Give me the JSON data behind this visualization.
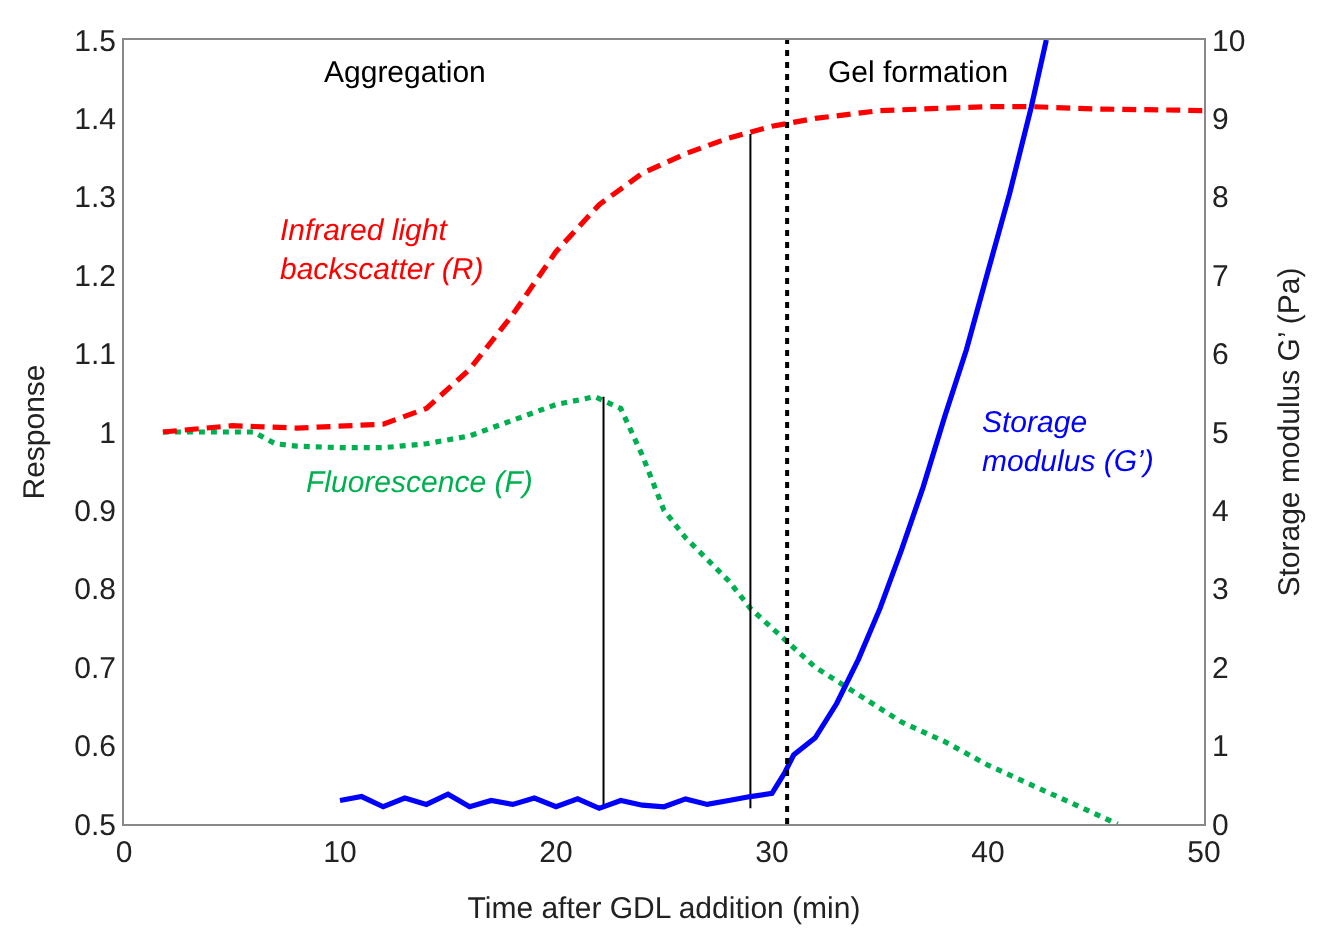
{
  "chart_data": {
    "type": "line",
    "xlabel": "Time after GDL addition (min)",
    "ylabel": "Response",
    "y2label": "Storage modulus G’ (Pa)",
    "xlim": [
      0,
      50
    ],
    "xticks": [
      0,
      10,
      20,
      30,
      40,
      50
    ],
    "ylim": [
      0.5,
      1.5
    ],
    "yticks": [
      {
        "value": 0.5,
        "label": "0.5"
      },
      {
        "value": 0.6,
        "label": "0.6"
      },
      {
        "value": 0.7,
        "label": "0.7"
      },
      {
        "value": 0.8,
        "label": "0.8"
      },
      {
        "value": 0.9,
        "label": "0.9"
      },
      {
        "value": 1,
        "label": "1"
      },
      {
        "value": 1.1,
        "label": "1.1"
      },
      {
        "value": 1.2,
        "label": "1.2"
      },
      {
        "value": 1.3,
        "label": "1.3"
      },
      {
        "value": 1.4,
        "label": "1.4"
      },
      {
        "value": 1.5,
        "label": "1.5"
      }
    ],
    "y2lim": [
      0,
      10
    ],
    "y2ticks": [
      0,
      1,
      2,
      3,
      4,
      5,
      6,
      7,
      8,
      9,
      10
    ],
    "grid": false,
    "legend": false,
    "marker": "none",
    "annotations": [
      "Aggregation",
      "Gel formation"
    ],
    "ref_lines": [
      {
        "axis": "x",
        "value": 30.7,
        "color": "#000000",
        "line_style": "dotted"
      }
    ],
    "series": [
      {
        "name": "Infrared light backscatter (R)",
        "color": "#ff0000",
        "line_style": "dashed",
        "x": [
          1.8,
          5,
          8,
          12,
          14,
          16,
          18,
          20,
          22,
          24,
          26,
          28,
          30,
          32,
          35,
          40,
          42,
          45,
          50
        ],
        "values": [
          1.0,
          1.008,
          1.005,
          1.01,
          1.03,
          1.08,
          1.15,
          1.23,
          1.29,
          1.33,
          1.355,
          1.375,
          1.39,
          1.4,
          1.41,
          1.415,
          1.415,
          1.412,
          1.41
        ]
      },
      {
        "name": "Fluorescence (F)",
        "color": "#00b050",
        "line_style": "dotted",
        "x": [
          1.8,
          4,
          6,
          7,
          8,
          10,
          12,
          14,
          16,
          18,
          20,
          21.8,
          23,
          24,
          25,
          26,
          28,
          29,
          30,
          32,
          34,
          36,
          38,
          40,
          42,
          44,
          46
        ],
        "values": [
          1.0,
          1.0,
          1.0,
          0.985,
          0.982,
          0.98,
          0.98,
          0.985,
          0.995,
          1.015,
          1.035,
          1.045,
          1.03,
          0.97,
          0.9,
          0.865,
          0.81,
          0.775,
          0.75,
          0.7,
          0.665,
          0.63,
          0.605,
          0.575,
          0.55,
          0.525,
          0.5
        ]
      },
      {
        "name": "Storage modulus (G’)",
        "color": "#0000ff",
        "line_style": "solid",
        "axis": "y2",
        "x": [
          10,
          11,
          12,
          13,
          14,
          15,
          16,
          17,
          18,
          19,
          20,
          21,
          22,
          23,
          24,
          25,
          26,
          27,
          28,
          29,
          30,
          30.6,
          31,
          32,
          33,
          34,
          35,
          36,
          37,
          38,
          39,
          40,
          41,
          42,
          42.7
        ],
        "values": [
          0.3,
          0.35,
          0.22,
          0.33,
          0.25,
          0.38,
          0.22,
          0.3,
          0.25,
          0.33,
          0.22,
          0.32,
          0.2,
          0.3,
          0.24,
          0.22,
          0.32,
          0.25,
          0.3,
          0.35,
          0.39,
          0.66,
          0.88,
          1.1,
          1.54,
          2.1,
          2.75,
          3.5,
          4.3,
          5.2,
          6.05,
          7.05,
          8.04,
          9.14,
          10
        ]
      },
      {
        "color": "#000000",
        "line_style": "solid",
        "x": [
          22.2,
          22.2
        ],
        "values": [
          0.52,
          1.045
        ]
      },
      {
        "color": "#000000",
        "line_style": "solid",
        "x": [
          29,
          29
        ],
        "values": [
          0.52,
          1.38
        ]
      }
    ]
  }
}
